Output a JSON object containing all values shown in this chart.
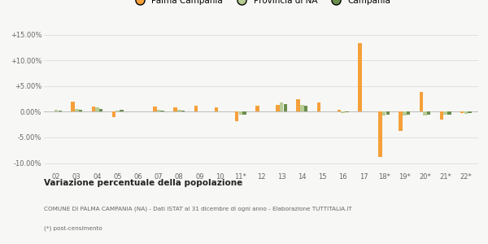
{
  "categories": [
    "02",
    "03",
    "04",
    "05",
    "06",
    "07",
    "08",
    "09",
    "10",
    "11*",
    "12",
    "13",
    "14",
    "15",
    "16",
    "17",
    "18*",
    "19*",
    "20*",
    "21*",
    "22*"
  ],
  "palma": [
    0.0,
    2.0,
    1.0,
    -1.0,
    0.0,
    1.0,
    0.8,
    1.2,
    0.8,
    -1.8,
    1.2,
    1.3,
    2.4,
    1.8,
    0.4,
    13.3,
    -8.8,
    -3.8,
    3.9,
    -1.5,
    -0.3
  ],
  "provincia": [
    0.3,
    0.5,
    0.8,
    0.2,
    0.1,
    0.3,
    0.3,
    0.1,
    0.0,
    -0.6,
    0.0,
    1.8,
    1.3,
    0.0,
    -0.2,
    0.0,
    -0.7,
    -0.8,
    -0.8,
    -0.6,
    -0.4
  ],
  "campania": [
    0.2,
    0.3,
    0.6,
    0.3,
    0.1,
    0.2,
    0.2,
    0.1,
    0.0,
    -0.5,
    0.0,
    1.5,
    1.2,
    0.0,
    -0.1,
    0.0,
    -0.5,
    -0.6,
    -0.6,
    -0.5,
    -0.3
  ],
  "palma_color": "#f5a03a",
  "provincia_color": "#b8cc94",
  "campania_color": "#6b8e4e",
  "bg_color": "#f7f7f5",
  "grid_color": "#dddddd",
  "ylim": [
    -11.5,
    17.0
  ],
  "yticks": [
    -10.0,
    -5.0,
    0.0,
    5.0,
    10.0,
    15.0
  ],
  "ytick_labels": [
    "-10.00%",
    "-5.00%",
    "0.00%",
    "+5.00%",
    "+10.00%",
    "+15.00%"
  ],
  "legend_labels": [
    "Palma Campania",
    "Provincia di NA",
    "Campania"
  ],
  "title": "Variazione percentuale della popolazione",
  "footer1": "COMUNE DI PALMA CAMPANIA (NA) - Dati ISTAT al 31 dicembre di ogni anno - Elaborazione TUTTITALIA.IT",
  "footer2": "(*) post-censimento"
}
